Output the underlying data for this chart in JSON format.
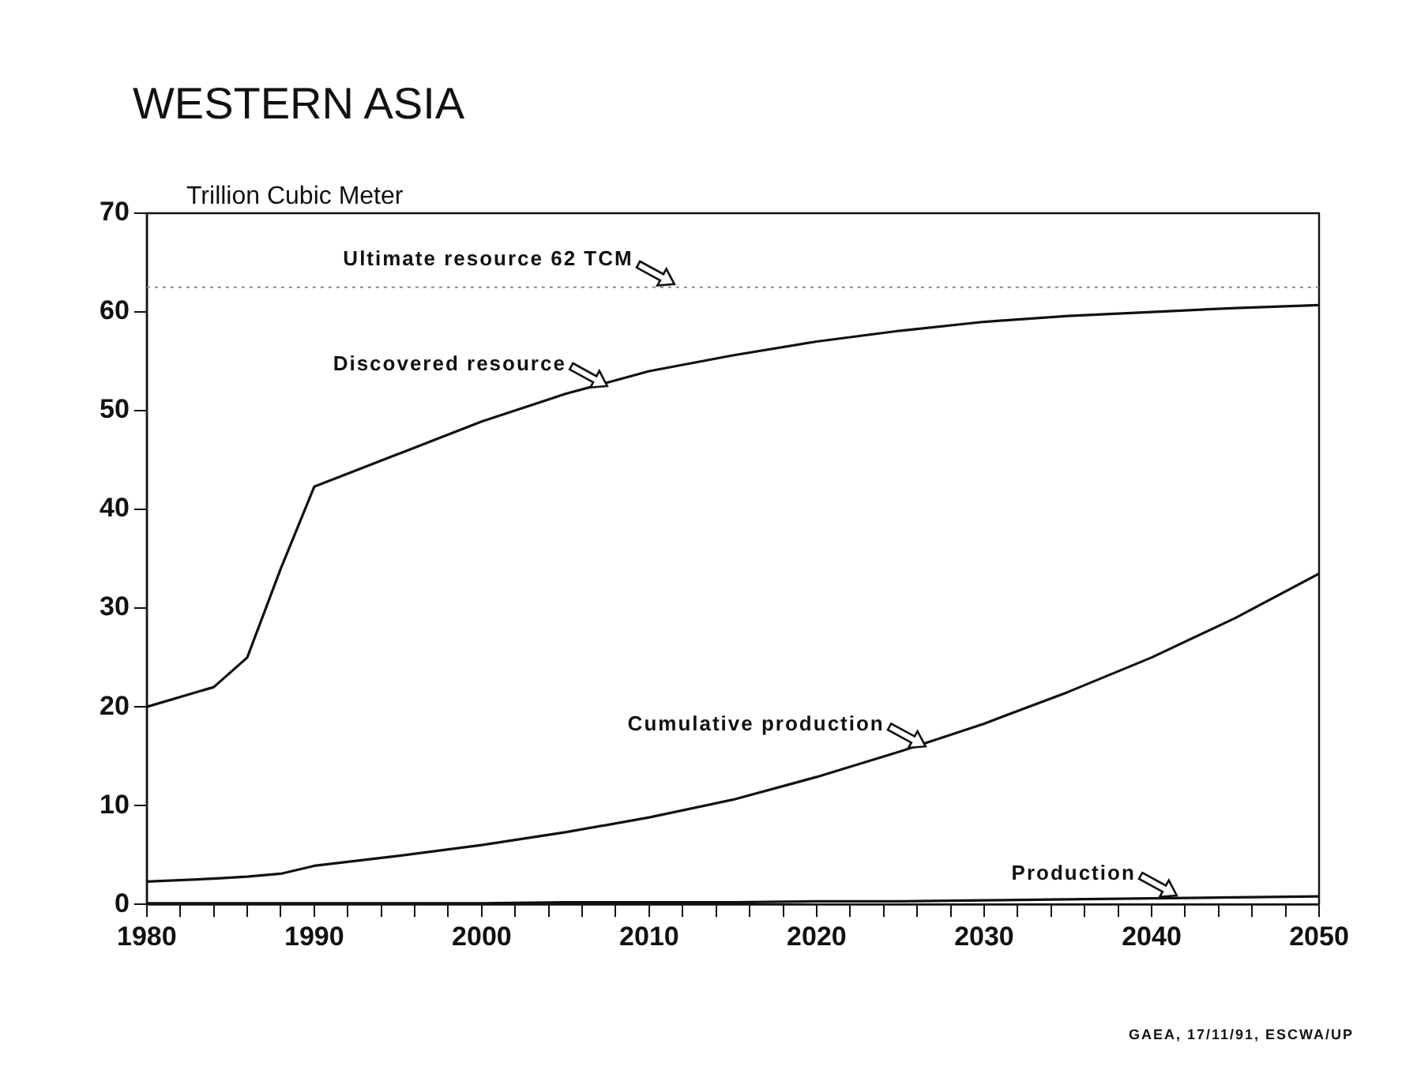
{
  "chart_data": {
    "type": "line",
    "title": "WESTERN ASIA",
    "ylabel": "Trillion Cubic Meter",
    "x": [
      1980,
      1984,
      1986,
      1988,
      1990,
      1995,
      2000,
      2005,
      2010,
      2015,
      2020,
      2025,
      2030,
      2035,
      2040,
      2045,
      2050
    ],
    "series": [
      {
        "color": "#111111",
        "values": [
          20,
          22,
          25,
          34,
          42.3,
          45.6,
          48.9,
          51.7,
          54,
          55.6,
          57,
          58.1,
          59,
          59.6,
          60,
          60.4,
          60.7
        ]
      },
      {
        "color": "#111111",
        "values": [
          2.3,
          2.6,
          2.8,
          3.1,
          3.9,
          4.9,
          6,
          7.3,
          8.8,
          10.6,
          12.9,
          15.5,
          18.3,
          21.5,
          25,
          29,
          33.5
        ]
      },
      {
        "color": "#111111",
        "values": [
          0.1,
          0.1,
          0.1,
          0.1,
          0.1,
          0.1,
          0.1,
          0.2,
          0.2,
          0.2,
          0.3,
          0.3,
          0.4,
          0.5,
          0.6,
          0.7,
          0.8
        ]
      }
    ],
    "xlim": [
      1980,
      2050
    ],
    "xticks": [
      1980,
      {
        "value": 1982,
        "label": null
      },
      {
        "value": 1984,
        "label": null
      },
      {
        "value": 1986,
        "label": null
      },
      {
        "value": 1988,
        "label": null
      },
      1990,
      {
        "value": 1992,
        "label": null
      },
      {
        "value": 1994,
        "label": null
      },
      {
        "value": 1996,
        "label": null
      },
      {
        "value": 1998,
        "label": null
      },
      2000,
      {
        "value": 2002,
        "label": null
      },
      {
        "value": 2004,
        "label": null
      },
      {
        "value": 2006,
        "label": null
      },
      {
        "value": 2008,
        "label": null
      },
      2010,
      {
        "value": 2012,
        "label": null
      },
      {
        "value": 2014,
        "label": null
      },
      {
        "value": 2016,
        "label": null
      },
      {
        "value": 2018,
        "label": null
      },
      2020,
      {
        "value": 2022,
        "label": null
      },
      {
        "value": 2024,
        "label": null
      },
      {
        "value": 2026,
        "label": null
      },
      {
        "value": 2028,
        "label": null
      },
      2030,
      {
        "value": 2032,
        "label": null
      },
      {
        "value": 2034,
        "label": null
      },
      {
        "value": 2036,
        "label": null
      },
      {
        "value": 2038,
        "label": null
      },
      2040,
      {
        "value": 2042,
        "label": null
      },
      {
        "value": 2044,
        "label": null
      },
      {
        "value": 2046,
        "label": null
      },
      {
        "value": 2048,
        "label": null
      },
      2050
    ],
    "ylim": [
      0,
      70
    ],
    "yticks": [
      0,
      10,
      20,
      30,
      40,
      50,
      60,
      70
    ],
    "ref_lines": [
      {
        "axis": "y",
        "value": 62.5,
        "label": "Ultimate resource 62 TCM",
        "color": "#888888",
        "line_style": "dotted"
      }
    ],
    "annotations": [
      {
        "text": "Discovered resource",
        "x": 2007.5,
        "y": 52.5
      },
      {
        "text": "Cumulative production",
        "x": 2026.5,
        "y": 16
      },
      {
        "text": "Production",
        "x": 2041.5,
        "y": 0.9
      },
      "GAEA, 17/11/91, ESCWA/UP"
    ],
    "grid": false,
    "legend": false,
    "marker": "none",
    "line_style": "solid"
  }
}
